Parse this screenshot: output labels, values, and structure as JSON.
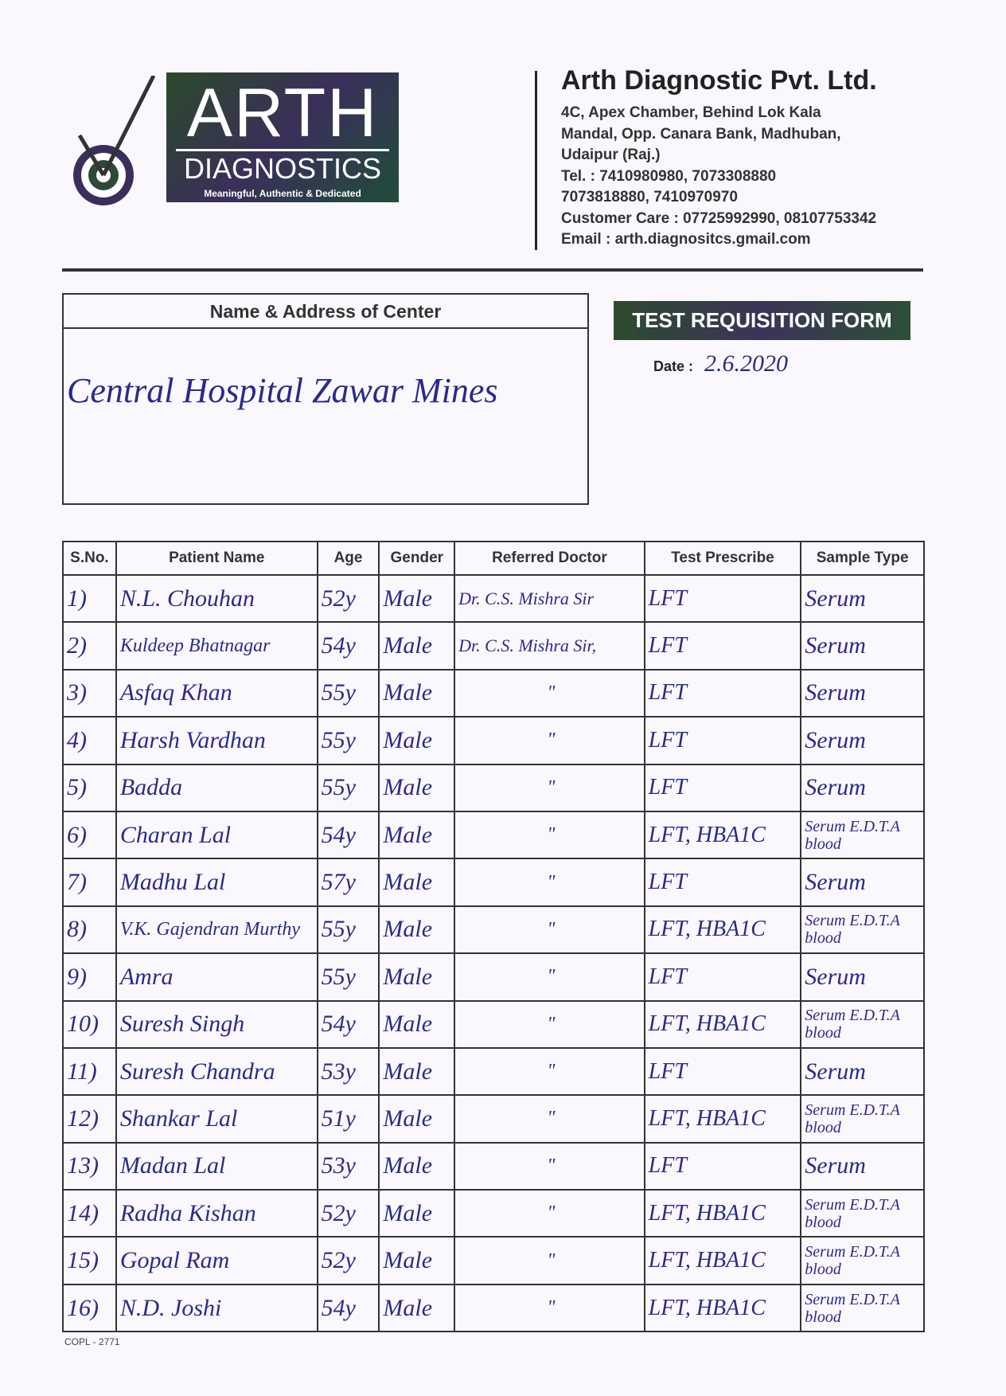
{
  "logo": {
    "title": "ARTH",
    "subtitle": "DIAGNOSTICS",
    "tagline": "Meaningful, Authentic & Dedicated"
  },
  "company": {
    "name": "Arth Diagnostic Pvt. Ltd.",
    "lines": [
      "4C, Apex Chamber, Behind Lok Kala",
      "Mandal, Opp. Canara Bank, Madhuban,",
      "Udaipur (Raj.)",
      "Tel. : 7410980980, 7073308880",
      "7073818880, 7410970970",
      "Customer Care : 07725992990, 08107753342",
      "Email : arth.diagnositcs.gmail.com"
    ]
  },
  "center": {
    "label": "Name & Address of Center",
    "value": "Central Hospital Zawar Mines"
  },
  "form_title": "TEST REQUISITION FORM",
  "date": {
    "label": "Date :",
    "value": "2.6.2020"
  },
  "table": {
    "headers": [
      "S.No.",
      "Patient Name",
      "Age",
      "Gender",
      "Referred Doctor",
      "Test Prescribe",
      "Sample Type"
    ],
    "rows": [
      [
        "1)",
        "N.L. Chouhan",
        "52y",
        "Male",
        "Dr. C.S. Mishra Sir",
        "LFT",
        "Serum"
      ],
      [
        "2)",
        "Kuldeep Bhatnagar",
        "54y",
        "Male",
        "Dr. C.S. Mishra Sir,",
        "LFT",
        "Serum"
      ],
      [
        "3)",
        "Asfaq Khan",
        "55y",
        "Male",
        "\"",
        "LFT",
        "Serum"
      ],
      [
        "4)",
        "Harsh Vardhan",
        "55y",
        "Male",
        "\"",
        "LFT",
        "Serum"
      ],
      [
        "5)",
        "Badda",
        "55y",
        "Male",
        "\"",
        "LFT",
        "Serum"
      ],
      [
        "6)",
        "Charan Lal",
        "54y",
        "Male",
        "\"",
        "LFT, HBA1C",
        "Serum E.D.T.A blood"
      ],
      [
        "7)",
        "Madhu Lal",
        "57y",
        "Male",
        "\"",
        "LFT",
        "Serum"
      ],
      [
        "8)",
        "V.K. Gajendran Murthy",
        "55y",
        "Male",
        "\"",
        "LFT, HBA1C",
        "Serum E.D.T.A blood"
      ],
      [
        "9)",
        "Amra",
        "55y",
        "Male",
        "\"",
        "LFT",
        "Serum"
      ],
      [
        "10)",
        "Suresh Singh",
        "54y",
        "Male",
        "\"",
        "LFT, HBA1C",
        "Serum E.D.T.A blood"
      ],
      [
        "11)",
        "Suresh Chandra",
        "53y",
        "Male",
        "\"",
        "LFT",
        "Serum"
      ],
      [
        "12)",
        "Shankar Lal",
        "51y",
        "Male",
        "\"",
        "LFT, HBA1C",
        "Serum E.D.T.A blood"
      ],
      [
        "13)",
        "Madan Lal",
        "53y",
        "Male",
        "\"",
        "LFT",
        "Serum"
      ],
      [
        "14)",
        "Radha Kishan",
        "52y",
        "Male",
        "\"",
        "LFT, HBA1C",
        "Serum E.D.T.A blood"
      ],
      [
        "15)",
        "Gopal Ram",
        "52y",
        "Male",
        "\"",
        "LFT, HBA1C",
        "Serum E.D.T.A blood"
      ],
      [
        "16)",
        "N.D. Joshi",
        "54y",
        "Male",
        "\"",
        "LFT, HBA1C",
        "Serum E.D.T.A blood"
      ]
    ]
  },
  "footer_code": "COPL - 2771"
}
